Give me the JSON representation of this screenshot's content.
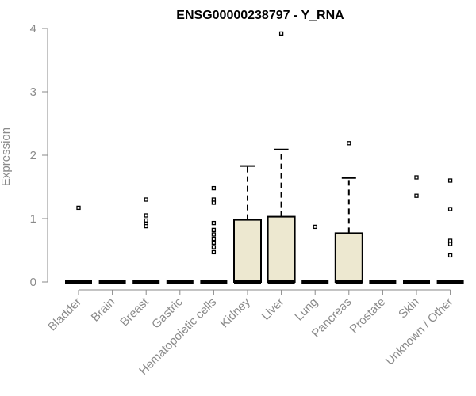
{
  "chart_data": {
    "type": "boxplot",
    "title": "ENSG00000238797 - Y_RNA",
    "xlabel": "",
    "ylabel": "Expression",
    "ylim": [
      0,
      4
    ],
    "yticks": [
      0,
      1,
      2,
      3,
      4
    ],
    "box_color": "#ede8d0",
    "categories": [
      "Bladder",
      "Brain",
      "Breast",
      "Gastric",
      "Hematopoietic cells",
      "Kidney",
      "Liver",
      "Lung",
      "Pancreas",
      "Prostate",
      "Skin",
      "Unknown / Other"
    ],
    "boxes": [
      {
        "category": "Bladder",
        "min": 0,
        "q1": 0,
        "median": 0,
        "q3": 0,
        "max": 0,
        "outliers": [
          1.17
        ]
      },
      {
        "category": "Brain",
        "min": 0,
        "q1": 0,
        "median": 0,
        "q3": 0,
        "max": 0,
        "outliers": []
      },
      {
        "category": "Breast",
        "min": 0,
        "q1": 0,
        "median": 0,
        "q3": 0,
        "max": 0,
        "outliers": [
          1.3,
          1.05,
          0.97,
          0.92,
          0.88
        ]
      },
      {
        "category": "Gastric",
        "min": 0,
        "q1": 0,
        "median": 0,
        "q3": 0,
        "max": 0,
        "outliers": []
      },
      {
        "category": "Hematopoietic cells",
        "min": 0,
        "q1": 0,
        "median": 0,
        "q3": 0,
        "max": 0,
        "outliers": [
          1.48,
          1.3,
          1.25,
          0.93,
          0.82,
          0.75,
          0.68,
          0.62,
          0.55,
          0.47
        ]
      },
      {
        "category": "Kidney",
        "min": 0,
        "q1": 0,
        "median": 0,
        "q3": 0.98,
        "max": 1.83,
        "outliers": []
      },
      {
        "category": "Liver",
        "min": 0,
        "q1": 0,
        "median": 0,
        "q3": 1.03,
        "max": 2.09,
        "outliers": [
          3.92
        ]
      },
      {
        "category": "Lung",
        "min": 0,
        "q1": 0,
        "median": 0,
        "q3": 0,
        "max": 0,
        "outliers": [
          0.87
        ]
      },
      {
        "category": "Pancreas",
        "min": 0,
        "q1": 0,
        "median": 0,
        "q3": 0.77,
        "max": 1.64,
        "outliers": [
          2.19
        ]
      },
      {
        "category": "Prostate",
        "min": 0,
        "q1": 0,
        "median": 0,
        "q3": 0,
        "max": 0,
        "outliers": []
      },
      {
        "category": "Skin",
        "min": 0,
        "q1": 0,
        "median": 0,
        "q3": 0,
        "max": 0,
        "outliers": [
          1.65,
          1.36
        ]
      },
      {
        "category": "Unknown / Other",
        "min": 0,
        "q1": 0,
        "median": 0,
        "q3": 0,
        "max": 0,
        "outliers": [
          1.6,
          1.15,
          0.65,
          0.6,
          0.42
        ]
      }
    ]
  }
}
